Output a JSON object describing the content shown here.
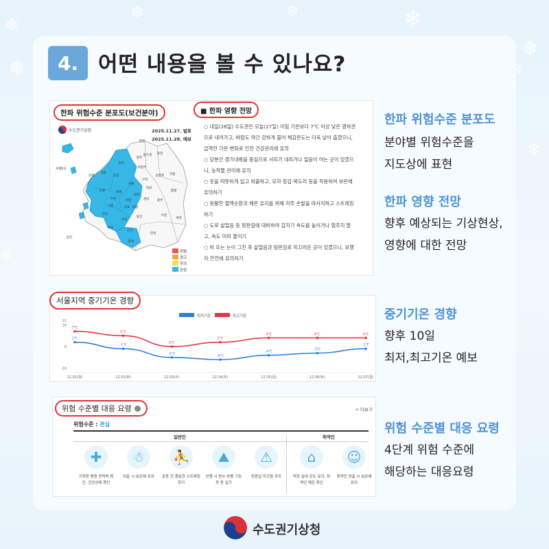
{
  "header": {
    "number": "4.",
    "title": "어떤 내용을 볼 수 있나요?"
  },
  "map_panel": {
    "pill_label": "한파 위험수준 분포도(보건분야)",
    "logo_text": "수도권기상청",
    "date_issued": "2025.11.27. 발표",
    "date_forecast": "2025.11.28. 예보",
    "region_labels": [
      "포천",
      "연천",
      "가평",
      "파주",
      "양주",
      "동두천",
      "의정부",
      "남양주",
      "양평",
      "고양",
      "김포",
      "강화",
      "구리",
      "서울",
      "하남",
      "광명",
      "과천",
      "성남",
      "광주",
      "인천",
      "안양",
      "군포",
      "의왕",
      "시흥",
      "부천",
      "안산",
      "용인",
      "이천",
      "여주",
      "화성",
      "오산",
      "수원",
      "평택",
      "안성",
      "옹진",
      "서해5도"
    ],
    "legend": [
      {
        "label": "위험",
        "color": "#e05a4f"
      },
      {
        "label": "경고",
        "color": "#f2a63a"
      },
      {
        "label": "주의",
        "color": "#f5e04a"
      },
      {
        "label": "관심",
        "color": "#37b7e6"
      }
    ]
  },
  "impact_panel": {
    "title": "■ 한파 영향 전망",
    "lines": [
      "○ 내일(28일) 수도권은 오늘(27일) 아침 기온보다 7℃ 이상 낮은 영하권",
      "으로 내려가고, 바람도 약간 강하게 불어 체감온도는 더욱 낮아 춥겠으니,",
      "급격한 기온 변화로 인한 건강관리에 유의",
      "○ 당분간 경기내륙을 중심으로 서리가 내리거나 얼음이 어는 곳이 있겠으",
      "니, 농작물 관리에 유의",
      "○ 옷을 따뜻하게 입고 외출하고, 모자·장갑·목도리 등을 착용하여 보온에",
      "유의하기",
      "○ 원활한 혈액순환과 체온 유지를 위해 자주 손발을 마사지하고 스트레칭",
      "하기",
      "○ 도로 살얼음 등 빙판길에 대비하여 갑자기 속도를 높이거나 멈추지 말",
      "고, 속도 미리 줄이기",
      "○ 비 또는 눈이 그친 후 살얼음과 빙판길로 미끄러운 곳이 있겠으니, 보행",
      "자 안전에 유의하기"
    ]
  },
  "side1": {
    "title": "한파 위험수준 분포도",
    "lines": [
      "분야별 위험수준을",
      "지도상에 표현"
    ]
  },
  "side2": {
    "title": "한파 영향 전망",
    "lines": [
      "향후 예상되는 기상현상,",
      "영향에 대한 전망"
    ]
  },
  "side3": {
    "title": "중기기온 경향",
    "lines": [
      "향후 10일",
      "최저,최고기온 예보"
    ]
  },
  "side4": {
    "title": "위험 수준별 대응 요령",
    "lines": [
      "4단계 위험 수준에",
      "해당하는 대응요령"
    ]
  },
  "chart_data": {
    "type": "line",
    "title": "서울지역 중기기온 경향",
    "categories": [
      "12.01(월)",
      "12.02(화)",
      "12.03(수)",
      "12.04(목)",
      "12.05(금)",
      "12.06(토)",
      "12.07(일)"
    ],
    "series": [
      {
        "name": "최저기온",
        "color": "#2d7fe0",
        "values": [
          2,
          -1,
          -5,
          -6,
          -4,
          -3,
          -1
        ],
        "labels": [
          "2℃",
          "-1℃",
          "-5℃",
          "-6℃",
          "-4℃",
          "-3℃",
          "-1℃"
        ]
      },
      {
        "name": "최고기온",
        "color": "#e8344a",
        "values": [
          7,
          5,
          0,
          2,
          4,
          4,
          4
        ],
        "labels": [
          "7℃",
          "5℃",
          "0℃",
          "2℃",
          "4℃",
          "4℃",
          "4℃"
        ]
      }
    ],
    "yticks": [
      "12",
      "10",
      "0",
      "-10"
    ],
    "ylim": [
      -12,
      12
    ]
  },
  "response_panel": {
    "pill_label": "위험 수준별 대응 요령",
    "more_label": "+ 더보기",
    "level_prefix": "위험수준 : ",
    "level_value": "관심",
    "group_general": "일반인",
    "group_vulnerable": "취약인",
    "items": [
      {
        "icon": "medical-kit-icon",
        "lines": [
          "기하랑 병원 연락처 확",
          "인, 건강상태 확인"
        ]
      },
      {
        "icon": "cold-person-icon",
        "lines": [
          "외출 시 보온에 유의",
          ""
        ]
      },
      {
        "icon": "stretching-icon",
        "lines": [
          "운동 전 충분한 스트레칭",
          "하기"
        ]
      },
      {
        "icon": "walking-icon",
        "lines": [
          "산행 시 방수·방풍 기능",
          "옷 등 입기"
        ]
      },
      {
        "icon": "slippery-road-icon",
        "lines": [
          "빙판길 미끄럼 주의",
          ""
        ]
      },
      {
        "icon": "home-heating-icon",
        "lines": [
          "적정 실내 온도 유지, 취",
          "약인 체온 확인"
        ]
      },
      {
        "icon": "dressed-person-icon",
        "lines": [
          "취약인 외출 시 보온에",
          "유의"
        ]
      }
    ]
  },
  "footer": {
    "org_name": "수도권기상청"
  }
}
